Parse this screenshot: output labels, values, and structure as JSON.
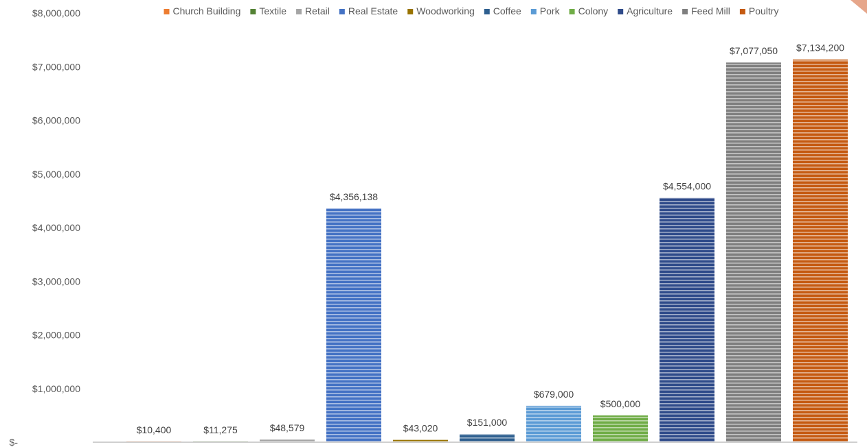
{
  "chart_data": {
    "type": "bar",
    "title": "",
    "xlabel": "",
    "ylabel": "",
    "ylim": [
      0,
      8000000
    ],
    "y_ticks": [
      0,
      1000000,
      2000000,
      3000000,
      4000000,
      5000000,
      6000000,
      7000000,
      8000000
    ],
    "y_tick_labels": [
      "$-",
      "$1,000,000",
      "$2,000,000",
      "$3,000,000",
      "$4,000,000",
      "$5,000,000",
      "$6,000,000",
      "$7,000,000",
      "$8,000,000"
    ],
    "grid": false,
    "legend_position": "top",
    "bar_style": "horizontal-striped",
    "series": [
      {
        "name": "Church Building",
        "value": 10400,
        "label": "$10,400",
        "color": "#ED7D31"
      },
      {
        "name": "Textile",
        "value": 11275,
        "label": "$11,275",
        "color": "#548235"
      },
      {
        "name": "Retail",
        "value": 48579,
        "label": "$48,579",
        "color": "#A5A5A5"
      },
      {
        "name": "Real Estate",
        "value": 4356138,
        "label": "$4,356,138",
        "color": "#4472C4"
      },
      {
        "name": "Woodworking",
        "value": 43020,
        "label": "$43,020",
        "color": "#997300"
      },
      {
        "name": "Coffee",
        "value": 151000,
        "label": "$151,000",
        "color": "#2E5F8F"
      },
      {
        "name": "Pork",
        "value": 679000,
        "label": "$679,000",
        "color": "#5B9BD5"
      },
      {
        "name": "Colony",
        "value": 500000,
        "label": "$500,000",
        "color": "#70AD47"
      },
      {
        "name": "Agriculture",
        "value": 4554000,
        "label": "$4,554,000",
        "color": "#2F4B8A"
      },
      {
        "name": "Feed Mill",
        "value": 7077050,
        "label": "$7,077,050",
        "color": "#7F7F7F"
      },
      {
        "name": "Poultry",
        "value": 7134200,
        "label": "$7,134,200",
        "color": "#C55A11"
      }
    ]
  }
}
